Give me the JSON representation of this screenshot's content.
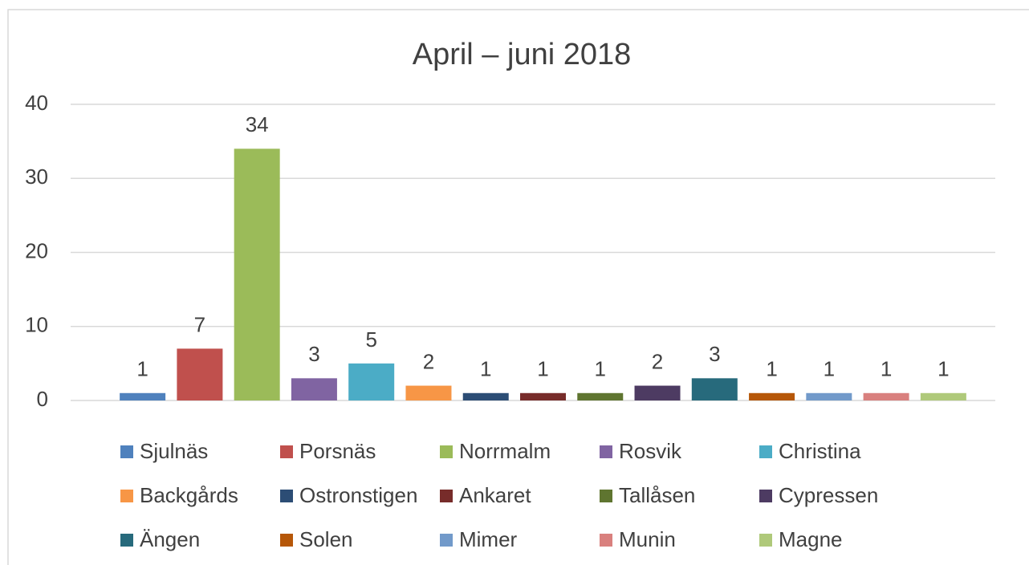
{
  "chart_data": {
    "type": "bar",
    "title": "April – juni 2018",
    "categories": [
      null
    ],
    "series": [
      {
        "name": "Sjulnäs",
        "color": "#4f81bd",
        "values": [
          1
        ]
      },
      {
        "name": "Porsnäs",
        "color": "#c0504d",
        "values": [
          7
        ]
      },
      {
        "name": "Norrmalm",
        "color": "#9bbb59",
        "values": [
          34
        ]
      },
      {
        "name": "Rosvik",
        "color": "#8064a2",
        "values": [
          3
        ]
      },
      {
        "name": "Christina",
        "color": "#4bacc6",
        "values": [
          5
        ]
      },
      {
        "name": "Backgårds",
        "color": "#f79646",
        "values": [
          2
        ]
      },
      {
        "name": "Ostronstigen",
        "color": "#2c4d75",
        "values": [
          1
        ]
      },
      {
        "name": "Ankaret",
        "color": "#772c2a",
        "values": [
          1
        ]
      },
      {
        "name": "Tallåsen",
        "color": "#5f7530",
        "values": [
          1
        ]
      },
      {
        "name": "Cypressen",
        "color": "#4d3b62",
        "values": [
          2
        ]
      },
      {
        "name": "Ängen",
        "color": "#276a7c",
        "values": [
          3
        ]
      },
      {
        "name": "Solen",
        "color": "#b65708",
        "values": [
          1
        ]
      },
      {
        "name": "Mimer",
        "color": "#729aca",
        "values": [
          1
        ]
      },
      {
        "name": "Munin",
        "color": "#d9807e",
        "values": [
          1
        ]
      },
      {
        "name": "Magne",
        "color": "#afc97a",
        "values": [
          1
        ]
      }
    ],
    "ylim": [
      0,
      40
    ],
    "yticks": [
      0,
      10,
      20,
      30,
      40
    ],
    "grid": true,
    "legend": "bottom"
  }
}
